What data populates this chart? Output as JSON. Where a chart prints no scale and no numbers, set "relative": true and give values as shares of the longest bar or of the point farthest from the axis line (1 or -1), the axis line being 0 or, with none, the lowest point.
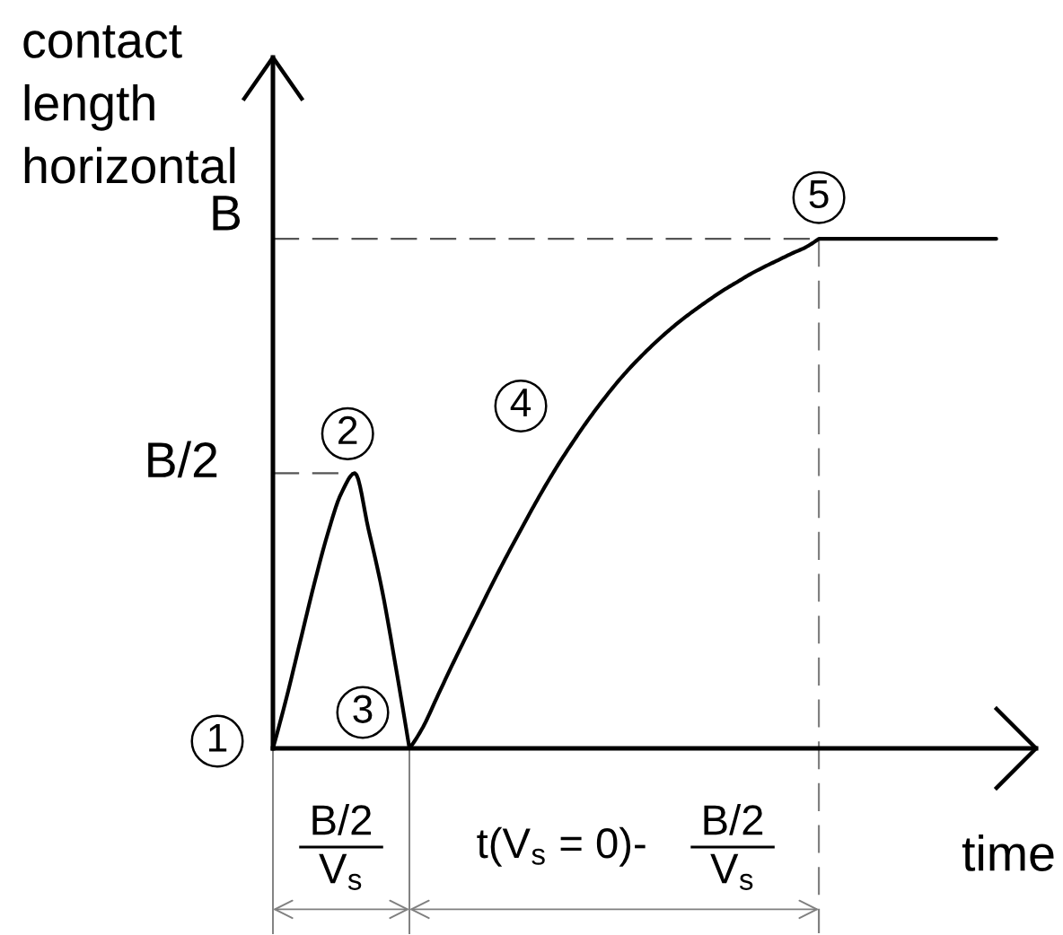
{
  "chart_data": {
    "type": "line",
    "relative": true,
    "categories": [
      null,
      null,
      null,
      null,
      null,
      null,
      null,
      null,
      null,
      null,
      null,
      null,
      null,
      null,
      null,
      null,
      null,
      null,
      null,
      null,
      null,
      null,
      null,
      null,
      null,
      null,
      null,
      null,
      null,
      null,
      null,
      null,
      null,
      null,
      null,
      null,
      null,
      null,
      null,
      null,
      null,
      null,
      null,
      null,
      null,
      null,
      null,
      null,
      null,
      null,
      null,
      null,
      null,
      null
    ],
    "values": [
      0,
      0.1,
      0.21,
      0.32,
      0.42,
      0.5,
      0.54,
      0.43,
      0.31,
      0.16,
      0,
      0.042,
      0.099,
      0.156,
      0.211,
      0.265,
      0.319,
      0.371,
      0.421,
      0.47,
      0.517,
      0.561,
      0.602,
      0.641,
      0.677,
      0.711,
      0.742,
      0.77,
      0.796,
      0.82,
      0.842,
      0.862,
      0.881,
      0.899,
      0.915,
      0.931,
      0.945,
      0.958,
      0.971,
      0.983,
      1,
      1,
      1,
      1,
      1,
      1,
      1,
      1,
      1,
      1,
      1,
      1,
      1,
      1
    ],
    "color": "#000000",
    "ylabel": "contact\nlength\nhorizontal",
    "xlabel": "time",
    "ref_lines": [
      {
        "axis": "y",
        "value": 1,
        "label": "B",
        "line_style": "dashed",
        "color": "#555555"
      },
      {
        "axis": "y",
        "value": 0.54,
        "label": "B/2",
        "line_style": "dashed",
        "color": "#555555"
      }
    ],
    "annotations": [
      "1",
      "2",
      "3",
      "4",
      "5",
      "B/2\nV$_{s}$",
      "t(V$_{s}$ = 0)-",
      "B/2\nV$_{s}$"
    ]
  }
}
